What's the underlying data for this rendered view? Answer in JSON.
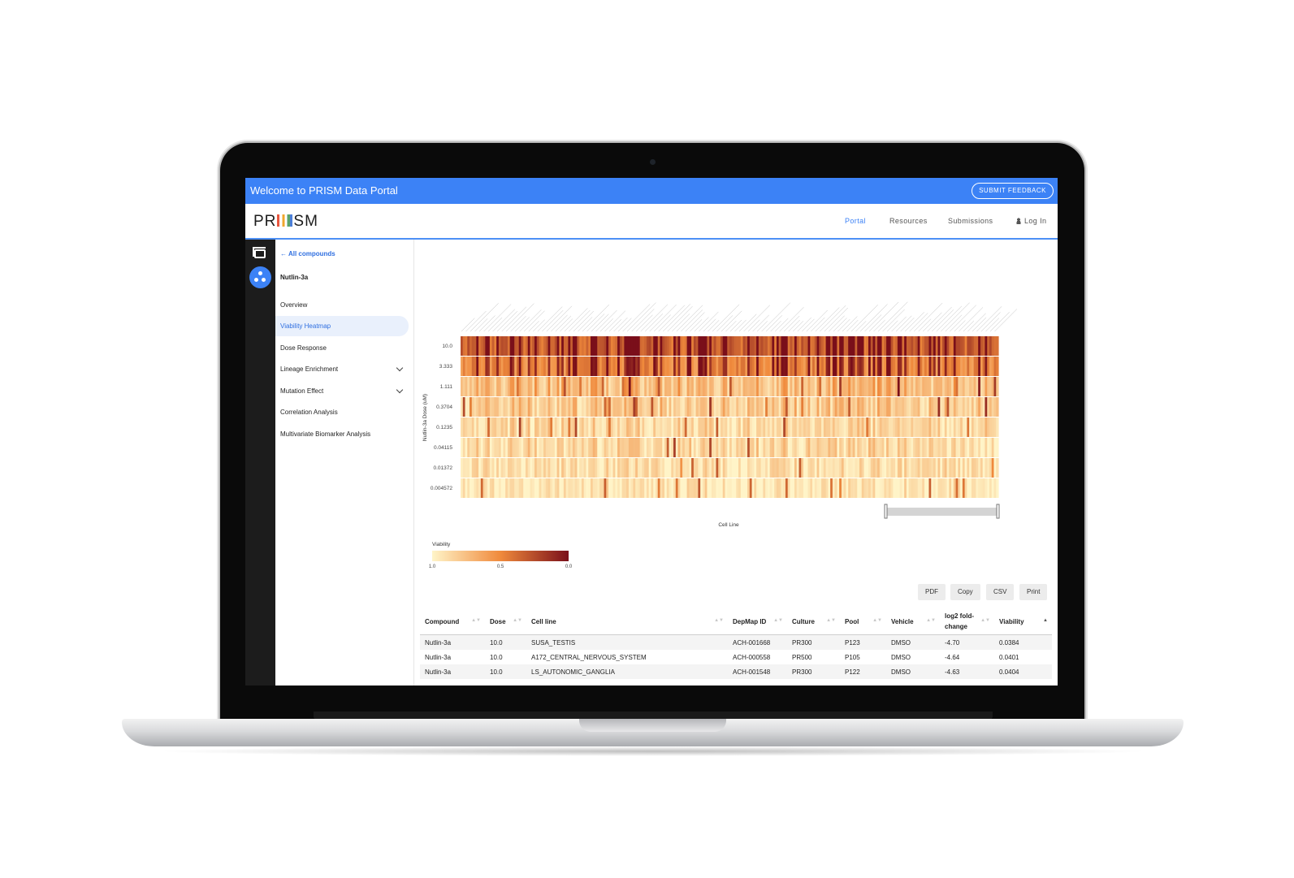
{
  "banner": {
    "title": "Welcome to PRISM Data Portal",
    "feedback_label": "SUBMIT FEEDBACK"
  },
  "nav": {
    "logo": {
      "left": "PR",
      "right": "SM"
    },
    "links": [
      "Portal",
      "Resources",
      "Submissions"
    ],
    "login_label": "Log In",
    "active": "Portal"
  },
  "sidebar": {
    "back_label": "All compounds",
    "compound": "Nutlin-3a",
    "items": [
      {
        "label": "Overview"
      },
      {
        "label": "Viability Heatmap",
        "active": true
      },
      {
        "label": "Dose Response"
      },
      {
        "label": "Lineage Enrichment",
        "expandable": true
      },
      {
        "label": "Mutation Effect",
        "expandable": true
      },
      {
        "label": "Correlation Analysis"
      },
      {
        "label": "Multivariate Biomarker Analysis"
      }
    ]
  },
  "colors": {
    "accent": "#3c82f6",
    "rail": "#1c1c1c",
    "heat_low": "#fff4c8",
    "heat_mid": "#f08a3c",
    "heat_high": "#7a0f1a"
  },
  "chart_data": {
    "type": "heatmap",
    "xlabel": "Cell Line",
    "ylabel": "Nutlin-3a Dose (uM)",
    "doses": [
      "10.0",
      "3.333",
      "1.111",
      "0.3704",
      "0.1235",
      "0.04115",
      "0.01372",
      "0.004572"
    ],
    "mean_viability": [
      0.35,
      0.5,
      0.8,
      0.85,
      0.9,
      0.9,
      0.93,
      0.95
    ],
    "num_cell_lines": 240,
    "colorbar": {
      "title": "Viability",
      "ticks": [
        "1.0",
        "0.5",
        "0.0"
      ],
      "range": [
        1.0,
        0.0
      ]
    }
  },
  "table": {
    "export_buttons": [
      "PDF",
      "Copy",
      "CSV",
      "Print"
    ],
    "headers": [
      "Compound",
      "Dose",
      "Cell line",
      "DepMap ID",
      "Culture",
      "Pool",
      "Vehicle",
      "log2 fold-change",
      "Viability"
    ],
    "rows": [
      [
        "Nutlin-3a",
        "10.0",
        "SUSA_TESTIS",
        "ACH-001668",
        "PR300",
        "P123",
        "DMSO",
        "-4.70",
        "0.0384"
      ],
      [
        "Nutlin-3a",
        "10.0",
        "A172_CENTRAL_NERVOUS_SYSTEM",
        "ACH-000558",
        "PR500",
        "P105",
        "DMSO",
        "-4.64",
        "0.0401"
      ],
      [
        "Nutlin-3a",
        "10.0",
        "LS_AUTONOMIC_GANGLIA",
        "ACH-001548",
        "PR300",
        "P122",
        "DMSO",
        "-4.63",
        "0.0404"
      ]
    ]
  }
}
